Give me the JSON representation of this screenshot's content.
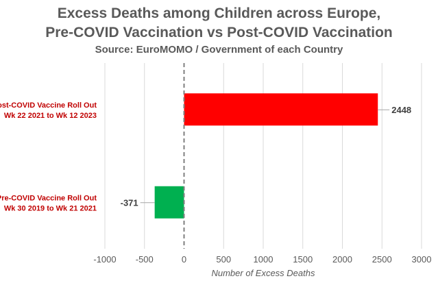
{
  "chart_data": {
    "type": "bar",
    "orientation": "horizontal",
    "title": "Excess Deaths among Children across Europe,",
    "title_line2": "Pre-COVID Vaccination vs Post-COVID Vaccination",
    "subtitle": "Source: EuroMOMO / Government of each Country",
    "xlabel": "Number of Excess Deaths",
    "ylabel": "",
    "xlim": [
      -1000,
      3000
    ],
    "xticks": [
      "-1000",
      "-500",
      "0",
      "500",
      "1000",
      "1500",
      "2000",
      "2500",
      "3000"
    ],
    "grid": true,
    "categories": [
      {
        "line1": "Post-COVID Vaccine Roll Out",
        "line2": "Wk 22 2021 to Wk 12 2023",
        "value": 2448,
        "label": "2448",
        "color": "#ff0000"
      },
      {
        "line1": "Pre-COVID Vaccine Roll Out",
        "line2": "Wk 30 2019 to Wk 21 2021",
        "value": -371,
        "label": "-371",
        "color": "#00b050"
      }
    ],
    "category_label_color": "#c00000",
    "text_color": "#595959"
  }
}
